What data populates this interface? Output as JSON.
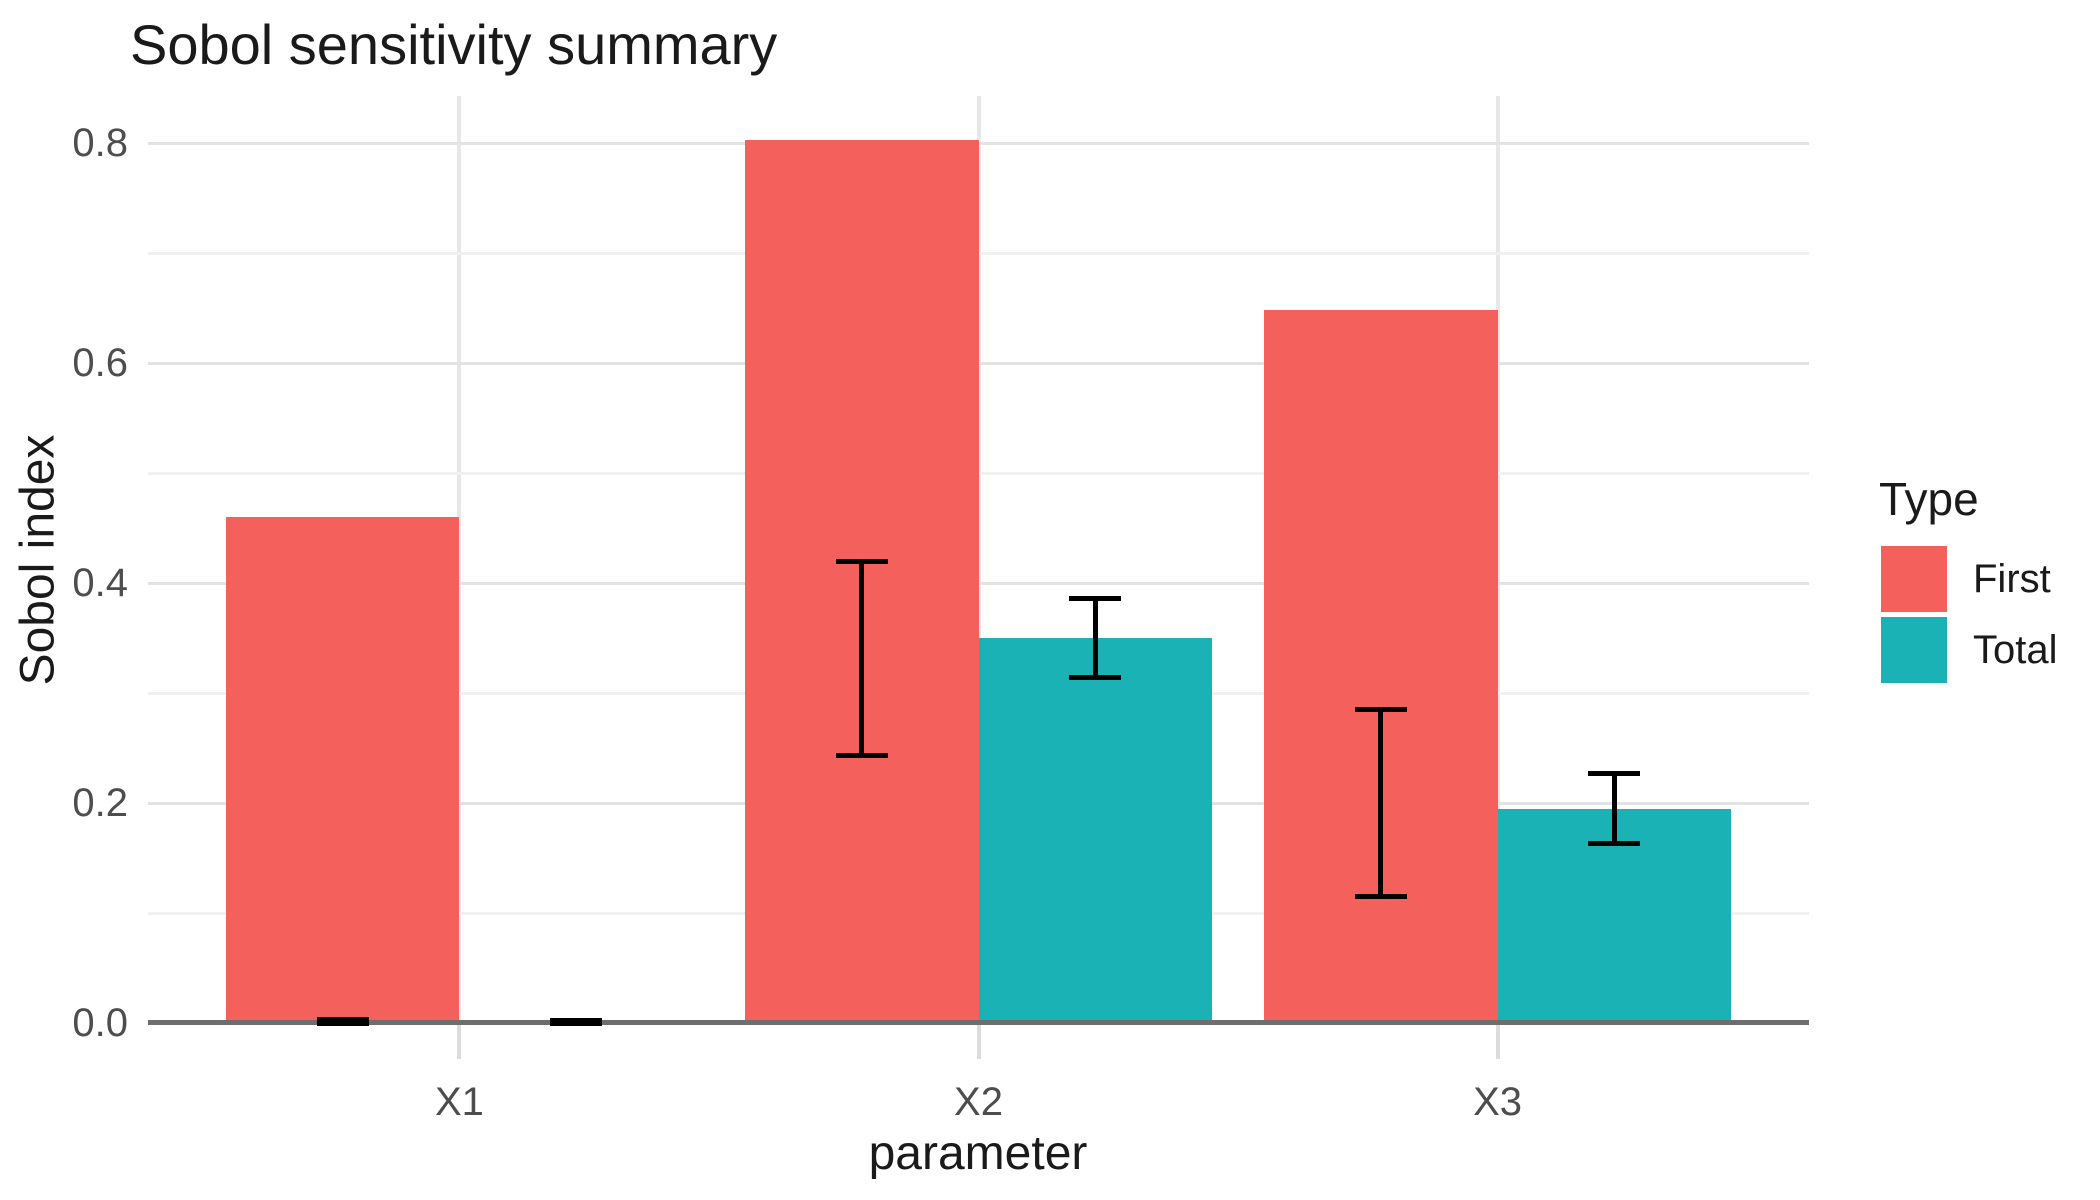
{
  "chart_data": {
    "type": "bar",
    "title": "Sobol sensitivity summary",
    "xlabel": "parameter",
    "ylabel": "Sobol index",
    "categories": [
      "X1",
      "X2",
      "X3"
    ],
    "series": [
      {
        "name": "First",
        "color": "#F4615D",
        "values": [
          0.46,
          0.803,
          0.648
        ],
        "ci_low": [
          0.0,
          0.243,
          0.115
        ],
        "ci_high": [
          0.003,
          0.42,
          0.285
        ]
      },
      {
        "name": "Total",
        "color": "#1AB2B4",
        "values": [
          0.0,
          0.35,
          0.195
        ],
        "ci_low": [
          0.0,
          0.314,
          0.163
        ],
        "ci_high": [
          0.002,
          0.386,
          0.227
        ]
      }
    ],
    "ytick_labels": [
      "0.0",
      "0.2",
      "0.4",
      "0.6",
      "0.8"
    ],
    "ylim": [
      0,
      0.843
    ],
    "grid": {
      "major": true,
      "minor": true
    },
    "legend": {
      "title": "Type",
      "position": "right"
    },
    "error_bar_color": "#000000",
    "axis_line_color": "#6E6E6E",
    "gridline_major_color": "#E3E3E3",
    "gridline_minor_color": "#F1F1F1",
    "tick_label_color": "#4D4D4D"
  }
}
